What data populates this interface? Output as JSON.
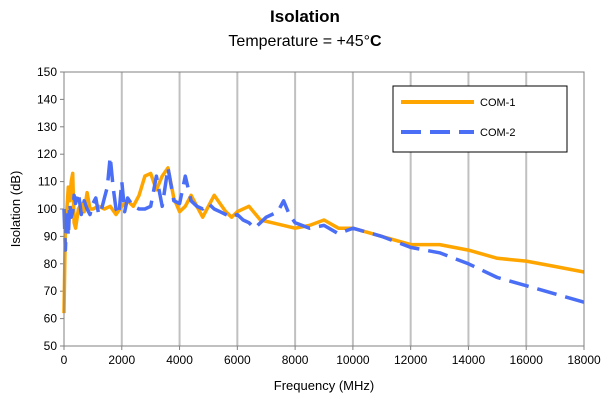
{
  "chart_data": {
    "type": "line",
    "title": "Isolation",
    "subtitle_prefix": "Temperature = +45°",
    "subtitle_unit": "C",
    "xlabel": "Frequency (MHz)",
    "ylabel": "Isolation (dB)",
    "xlim": [
      0,
      18000
    ],
    "ylim": [
      50,
      150
    ],
    "xticks": [
      0,
      2000,
      4000,
      6000,
      8000,
      10000,
      12000,
      14000,
      16000,
      18000
    ],
    "yticks": [
      50,
      60,
      70,
      80,
      90,
      100,
      110,
      120,
      130,
      140,
      150
    ],
    "grid": "vertical",
    "legend_position": "top-right",
    "series": [
      {
        "name": "COM-1",
        "color": "#FFA500",
        "style": "solid",
        "x": [
          0,
          50,
          100,
          150,
          200,
          250,
          300,
          350,
          400,
          500,
          600,
          700,
          800,
          900,
          1000,
          1200,
          1400,
          1600,
          1800,
          2000,
          2200,
          2400,
          2600,
          2800,
          3000,
          3200,
          3400,
          3600,
          3800,
          4000,
          4200,
          4400,
          4600,
          4800,
          5000,
          5200,
          5400,
          5600,
          5800,
          6000,
          6400,
          6800,
          7200,
          7600,
          8000,
          8500,
          9000,
          9500,
          10000,
          11000,
          12000,
          13000,
          14000,
          15000,
          16000,
          17000,
          18000
        ],
        "y": [
          62,
          95,
          100,
          108,
          103,
          110,
          113,
          95,
          93,
          100,
          102,
          99,
          106,
          100,
          100,
          101,
          100,
          101,
          98,
          101,
          103,
          101,
          105,
          112,
          113,
          107,
          112,
          115,
          104,
          99,
          101,
          105,
          101,
          97,
          101,
          105,
          102,
          99,
          97,
          99,
          101,
          96,
          95,
          94,
          93,
          94,
          96,
          93,
          93,
          90,
          87,
          87,
          85,
          82,
          81,
          79,
          77
        ]
      },
      {
        "name": "COM-2",
        "color": "#4A6EF5",
        "style": "dashed",
        "x": [
          0,
          50,
          100,
          150,
          200,
          250,
          300,
          350,
          400,
          500,
          600,
          700,
          800,
          900,
          1000,
          1100,
          1200,
          1300,
          1400,
          1500,
          1600,
          1700,
          1800,
          1900,
          2000,
          2100,
          2200,
          2400,
          2600,
          2800,
          3000,
          3200,
          3400,
          3600,
          3800,
          4000,
          4200,
          4400,
          4600,
          4800,
          5000,
          5200,
          5400,
          5600,
          5800,
          6000,
          6200,
          6400,
          6600,
          6800,
          7000,
          7200,
          7400,
          7600,
          7800,
          8000,
          8500,
          9000,
          9500,
          10000,
          11000,
          12000,
          13000,
          14000,
          15000,
          16000,
          17000,
          18000
        ],
        "y": [
          100,
          85,
          100,
          90,
          102,
          97,
          99,
          105,
          102,
          106,
          98,
          103,
          100,
          98,
          102,
          104,
          98,
          100,
          104,
          108,
          119,
          108,
          100,
          98,
          110,
          99,
          104,
          101,
          100,
          100,
          101,
          112,
          101,
          115,
          103,
          102,
          112,
          103,
          101,
          100,
          102,
          100,
          99,
          98,
          97,
          98,
          96,
          95,
          93,
          95,
          97,
          98,
          99,
          103,
          98,
          95,
          93,
          94,
          91,
          93,
          90,
          86,
          84,
          80,
          75,
          72,
          69,
          66
        ]
      }
    ]
  }
}
